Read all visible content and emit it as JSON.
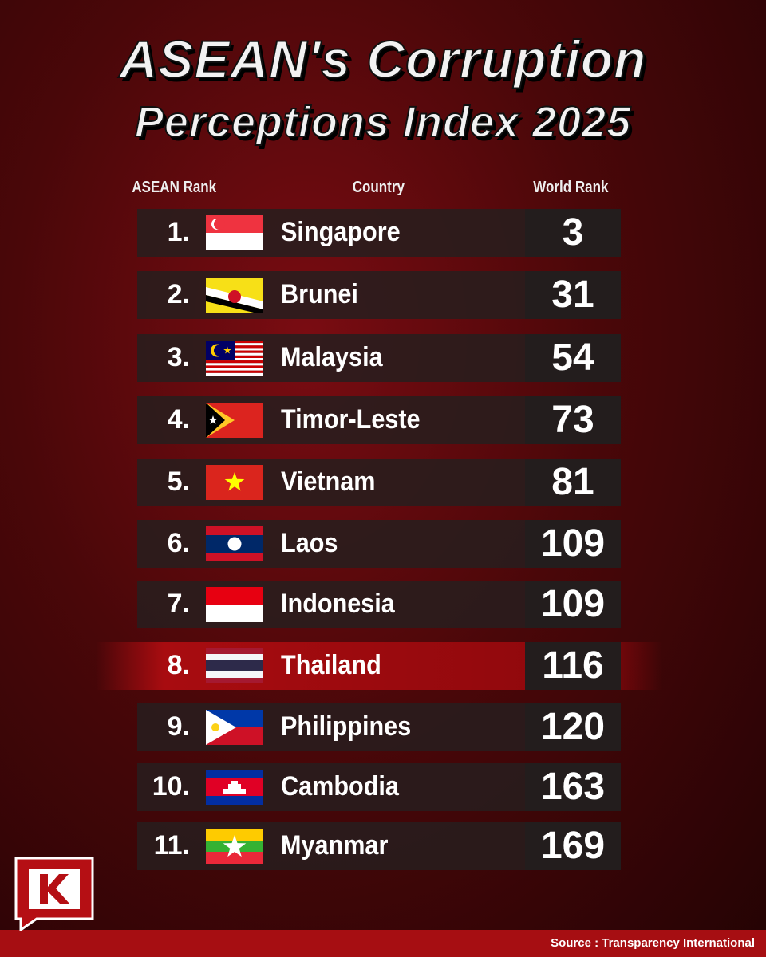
{
  "header": {
    "title_line1": "ASEAN's Corruption",
    "title_line2": "Perceptions Index 2025"
  },
  "table": {
    "columns": [
      "ASEAN Rank",
      "Country",
      "World Rank"
    ],
    "rows": [
      [
        "1.",
        "Singapore",
        3
      ],
      [
        "2.",
        "Brunei",
        31
      ],
      [
        "3.",
        "Malaysia",
        54
      ],
      [
        "4.",
        "Timor-Leste",
        73
      ],
      [
        "5.",
        "Vietnam",
        81
      ],
      [
        "6.",
        "Laos",
        109
      ],
      [
        "7.",
        "Indonesia",
        109
      ],
      [
        "8.",
        "Thailand",
        116
      ],
      [
        "9.",
        "Philippines",
        120
      ],
      [
        "10.",
        "Cambodia",
        163
      ],
      [
        "11.",
        "Myanmar",
        169
      ]
    ]
  },
  "footer": {
    "source": "Source : Transparency International"
  }
}
